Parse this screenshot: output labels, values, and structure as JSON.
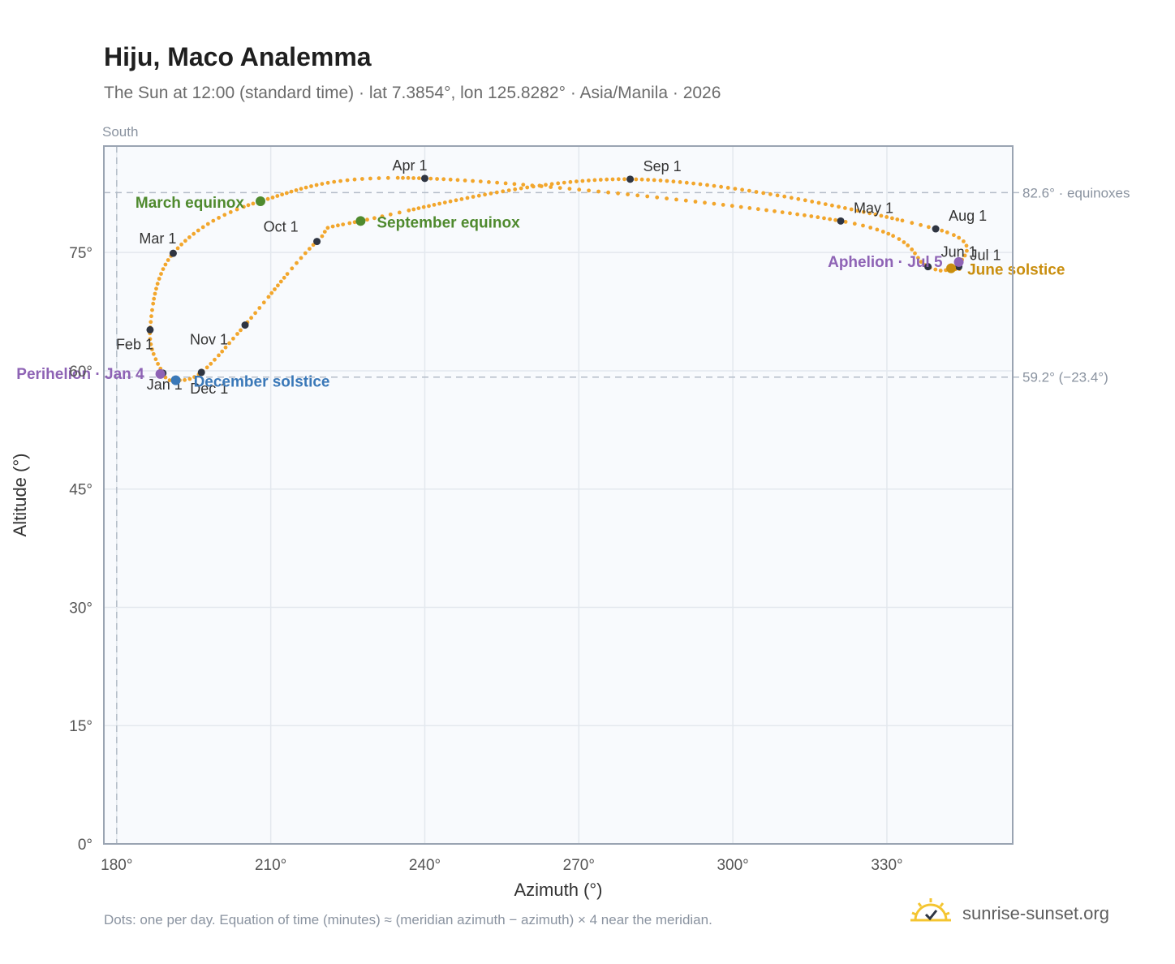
{
  "header": {
    "title": "Hiju, Maco Analemma",
    "subtitle": "The Sun at 12:00 (standard time) · lat 7.3854°, lon 125.8282° · Asia/Manila · 2026"
  },
  "footer": {
    "note": "Dots: one per day. Equation of time (minutes) ≈ (meridian azimuth − azimuth) × 4 near the meridian.",
    "brand": "sunrise-sunset.org",
    "brand_icon": "sun-logo-icon"
  },
  "colors": {
    "curve": "#f2a62c",
    "month_dot": "#2f3542",
    "equinox": "#4f8a2e",
    "december_solstice": "#3a78b8",
    "june_solstice": "#c98e0e",
    "perihelion_aphelion": "#8e63b5",
    "reference_line": "#b3bcc8",
    "plot_bg": "#f8fafd",
    "frame": "#9aa4b2",
    "grid": "#e3e8ee"
  },
  "chart_data": {
    "type": "scatter",
    "title": "Hiju, Maco Analemma",
    "xlabel": "Azimuth (°)",
    "ylabel": "Altitude (°)",
    "xlim": [
      177.5,
      354.5
    ],
    "ylim": [
      0,
      88.5
    ],
    "xticks": [
      180,
      210,
      240,
      270,
      300,
      330
    ],
    "xtick_labels": [
      "180°",
      "210°",
      "240°",
      "270°",
      "300°",
      "330°"
    ],
    "yticks": [
      0,
      15,
      30,
      45,
      60,
      75
    ],
    "ytick_labels": [
      "0°",
      "15°",
      "30°",
      "45°",
      "60°",
      "75°"
    ],
    "grid": true,
    "meridian_label": "South",
    "meridian_azimuth": 180,
    "reference_lines": [
      {
        "altitude": 82.6,
        "label": "82.6° · equinoxes"
      },
      {
        "altitude": 59.2,
        "label": "59.2° (−23.4°)"
      }
    ],
    "month_markers": [
      {
        "label": "Jan 1",
        "az": 189.0,
        "alt": 59.7
      },
      {
        "label": "Feb 1",
        "az": 186.5,
        "alt": 65.2
      },
      {
        "label": "Mar 1",
        "az": 191.0,
        "alt": 74.9
      },
      {
        "label": "Apr 1",
        "az": 240.0,
        "alt": 84.4
      },
      {
        "label": "May 1",
        "az": 321.0,
        "alt": 79.0
      },
      {
        "label": "Jun 1",
        "az": 338.0,
        "alt": 73.2
      },
      {
        "label": "Jul 1",
        "az": 344.0,
        "alt": 73.2
      },
      {
        "label": "Aug 1",
        "az": 339.5,
        "alt": 78.0
      },
      {
        "label": "Sep 1",
        "az": 280.0,
        "alt": 84.3
      },
      {
        "label": "Oct 1",
        "az": 219.0,
        "alt": 76.4
      },
      {
        "label": "Nov 1",
        "az": 205.0,
        "alt": 65.8
      },
      {
        "label": "Dec 1",
        "az": 196.5,
        "alt": 59.8
      }
    ],
    "events": [
      {
        "label": "March equinox",
        "az": 208.0,
        "alt": 81.5,
        "color_key": "equinox",
        "anchor": "end"
      },
      {
        "label": "September equinox",
        "az": 227.5,
        "alt": 79.0,
        "color_key": "equinox",
        "anchor": "start"
      },
      {
        "label": "December solstice",
        "az": 191.5,
        "alt": 58.8,
        "color_key": "december_solstice",
        "anchor": "start"
      },
      {
        "label": "June solstice",
        "az": 342.5,
        "alt": 73.0,
        "color_key": "june_solstice",
        "anchor": "start"
      },
      {
        "label": "Perihelion · Jan 4",
        "az": 188.5,
        "alt": 59.6,
        "color_key": "perihelion_aphelion",
        "anchor": "end"
      },
      {
        "label": "Aphelion · Jul 5",
        "az": 344.0,
        "alt": 73.8,
        "color_key": "perihelion_aphelion",
        "anchor": "end"
      }
    ]
  }
}
